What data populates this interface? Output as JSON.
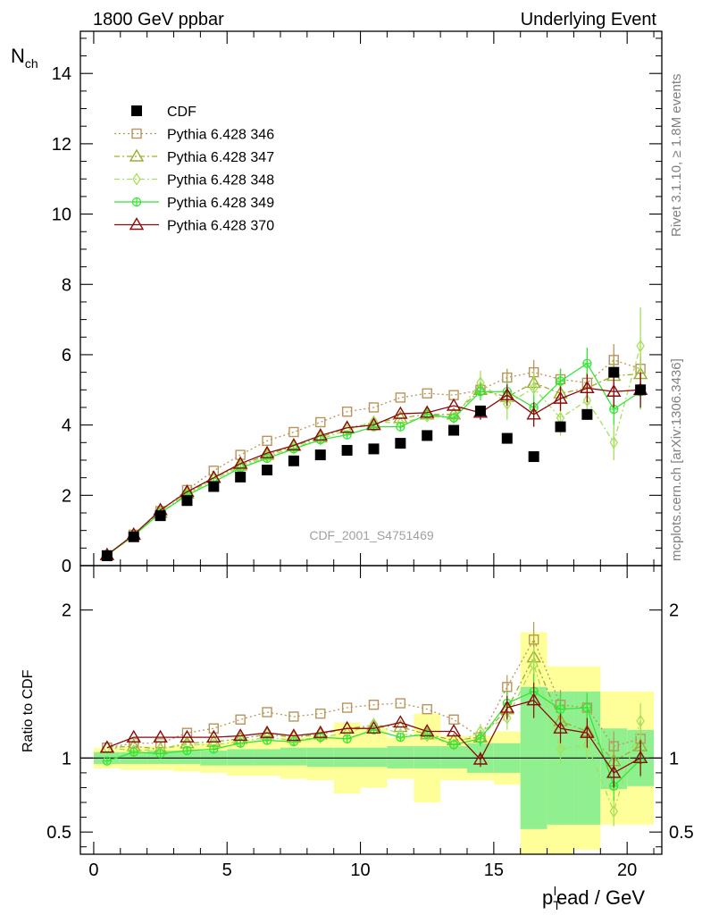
{
  "header": {
    "left_title": "1800 GeV ppbar",
    "right_title": "Underlying Event"
  },
  "side_labels": {
    "rivet": "Rivet 3.1.10, ≥ 1.8M events",
    "mcplots": "mcplots.cern.ch [arXiv:1306.3436]"
  },
  "watermark": "CDF_2001_S4751469",
  "axes": {
    "top_ylabel_main": "N",
    "top_ylabel_sub": "ch",
    "bottom_ylabel": "Ratio to CDF",
    "xlabel_p": "p",
    "xlabel_sub": "T",
    "xlabel_sup": "l",
    "xlabel_rest": "ead / GeV"
  },
  "chart_data": [
    {
      "type": "scatter",
      "panel": "main",
      "xlim": [
        -0.5,
        21.3
      ],
      "ylim": [
        0,
        15.2
      ],
      "xticks": [
        0,
        5,
        10,
        15,
        20
      ],
      "yticks": [
        0,
        2,
        4,
        6,
        8,
        10,
        12,
        14
      ],
      "x": [
        0.5,
        1.5,
        2.5,
        3.5,
        4.5,
        5.5,
        6.5,
        7.5,
        8.5,
        9.5,
        10.5,
        11.5,
        12.5,
        13.5,
        14.5,
        15.5,
        16.5,
        17.5,
        18.5,
        19.5,
        20.5
      ],
      "legend_position": "top-left",
      "series": [
        {
          "name": "CDF",
          "color": "#000000",
          "marker": "filled-square",
          "line": "none",
          "values": [
            0.28,
            0.82,
            1.42,
            1.85,
            2.25,
            2.52,
            2.72,
            2.98,
            3.15,
            3.28,
            3.32,
            3.48,
            3.7,
            3.85,
            4.4,
            3.62,
            3.1,
            3.95,
            4.3,
            5.5,
            5.0
          ]
        },
        {
          "name": "Pythia 6.428 346",
          "color": "#b8955a",
          "marker": "open-square",
          "line": "dotted",
          "values": [
            0.3,
            0.88,
            1.55,
            2.15,
            2.7,
            3.15,
            3.55,
            3.8,
            4.08,
            4.38,
            4.5,
            4.78,
            4.9,
            4.85,
            5.0,
            5.35,
            5.5,
            5.3,
            5.2,
            5.85,
            5.6
          ],
          "errors": [
            0,
            0,
            0,
            0,
            0,
            0,
            0,
            0,
            0,
            0,
            0,
            0,
            0,
            0,
            0.15,
            0.25,
            0.35,
            0.3,
            0.35,
            0.45,
            0.45
          ]
        },
        {
          "name": "Pythia 6.428 347",
          "color": "#9aae30",
          "marker": "open-triangle",
          "line": "dashdot",
          "values": [
            0.3,
            0.88,
            1.5,
            2.05,
            2.5,
            2.85,
            3.15,
            3.4,
            3.65,
            3.92,
            4.05,
            4.2,
            4.3,
            4.3,
            5.0,
            4.8,
            5.2,
            4.9,
            5.05,
            5.4,
            5.45
          ],
          "errors": [
            0,
            0,
            0,
            0,
            0,
            0,
            0,
            0,
            0,
            0,
            0,
            0,
            0,
            0,
            0.2,
            0.3,
            0.35,
            0.35,
            0.4,
            0.45,
            0.5
          ]
        },
        {
          "name": "Pythia 6.428 348",
          "color": "#a5e05a",
          "marker": "open-diamond",
          "line": "dashdot",
          "values": [
            0.3,
            0.86,
            1.5,
            2.02,
            2.45,
            2.8,
            3.1,
            3.35,
            3.6,
            3.85,
            4.1,
            4.05,
            4.25,
            4.2,
            5.2,
            4.6,
            5.05,
            4.2,
            4.7,
            3.5,
            6.25
          ],
          "errors": [
            0,
            0,
            0,
            0,
            0,
            0,
            0,
            0,
            0,
            0,
            0,
            0,
            0,
            0,
            0.35,
            0.45,
            0.5,
            0.5,
            0.55,
            0.5,
            1.1
          ]
        },
        {
          "name": "Pythia 6.428 349",
          "color": "#33e633",
          "marker": "open-circle-cross",
          "line": "solid",
          "values": [
            0.3,
            0.85,
            1.5,
            2.0,
            2.38,
            2.78,
            3.05,
            3.32,
            3.58,
            3.72,
            3.95,
            3.95,
            4.3,
            4.2,
            4.95,
            4.95,
            4.5,
            5.25,
            5.75,
            4.45,
            4.95
          ],
          "errors": [
            0,
            0,
            0,
            0,
            0,
            0,
            0,
            0,
            0,
            0,
            0,
            0,
            0,
            0,
            0.25,
            0.3,
            0.35,
            0.35,
            0.45,
            0.45,
            0.5
          ]
        },
        {
          "name": "Pythia 6.428 370",
          "color": "#8b0a0a",
          "marker": "open-triangle",
          "line": "solid",
          "values": [
            0.3,
            0.88,
            1.58,
            2.1,
            2.5,
            2.9,
            3.2,
            3.42,
            3.7,
            3.92,
            4.0,
            4.32,
            4.35,
            4.55,
            4.35,
            4.85,
            4.3,
            4.75,
            5.05,
            4.95,
            5.0
          ],
          "errors": [
            0,
            0,
            0,
            0,
            0,
            0,
            0,
            0,
            0,
            0,
            0,
            0,
            0,
            0,
            0.2,
            0.3,
            0.35,
            0.35,
            0.4,
            0.45,
            0.5
          ]
        }
      ]
    },
    {
      "type": "line",
      "panel": "ratio",
      "xlim": [
        -0.5,
        21.3
      ],
      "ylim": [
        0.35,
        2.3
      ],
      "xticks": [
        0,
        5,
        10,
        15,
        20
      ],
      "yticks": [
        0.5,
        1,
        2
      ],
      "x": [
        0.5,
        1.5,
        2.5,
        3.5,
        4.5,
        5.5,
        6.5,
        7.5,
        8.5,
        9.5,
        10.5,
        11.5,
        12.5,
        13.5,
        14.5,
        15.5,
        16.5,
        17.5,
        18.5,
        19.5,
        20.5
      ],
      "bands": {
        "inner_color": "#90f090",
        "outer_color": "#ffff99",
        "inner_lo": [
          0.96,
          0.96,
          0.96,
          0.96,
          0.95,
          0.95,
          0.95,
          0.95,
          0.94,
          0.94,
          0.94,
          0.93,
          0.93,
          0.93,
          0.9,
          0.9,
          0.52,
          0.55,
          0.55,
          0.79,
          0.81
        ],
        "inner_hi": [
          1.04,
          1.04,
          1.05,
          1.05,
          1.05,
          1.06,
          1.06,
          1.07,
          1.07,
          1.07,
          1.07,
          1.08,
          1.08,
          1.08,
          1.1,
          1.1,
          1.48,
          1.45,
          1.45,
          1.2,
          1.19
        ],
        "outer_lo": [
          0.93,
          0.92,
          0.92,
          0.91,
          0.9,
          0.88,
          0.88,
          0.86,
          0.85,
          0.76,
          0.8,
          0.86,
          0.7,
          0.85,
          0.85,
          0.82,
          0.32,
          0.35,
          0.38,
          0.55,
          0.55
        ],
        "outer_hi": [
          1.07,
          1.08,
          1.08,
          1.09,
          1.1,
          1.12,
          1.12,
          1.14,
          1.15,
          1.24,
          1.2,
          1.14,
          1.3,
          1.15,
          1.15,
          1.18,
          1.85,
          1.62,
          1.62,
          1.45,
          1.45
        ]
      },
      "series": [
        {
          "name": "Pythia 6.428 346",
          "values": [
            1.07,
            1.1,
            1.1,
            1.17,
            1.2,
            1.26,
            1.31,
            1.28,
            1.3,
            1.34,
            1.36,
            1.37,
            1.33,
            1.26,
            1.14,
            1.48,
            1.8,
            1.36,
            1.34,
            1.08,
            1.13
          ]
        },
        {
          "name": "Pythia 6.428 347",
          "values": [
            1.07,
            1.08,
            1.06,
            1.1,
            1.11,
            1.13,
            1.16,
            1.14,
            1.16,
            1.2,
            1.22,
            1.21,
            1.16,
            1.12,
            1.14,
            1.33,
            1.68,
            1.25,
            1.18,
            0.98,
            1.08
          ]
        },
        {
          "name": "Pythia 6.428 348",
          "values": [
            1.07,
            1.05,
            1.06,
            1.09,
            1.09,
            1.11,
            1.14,
            1.12,
            1.14,
            1.17,
            1.23,
            1.16,
            1.15,
            1.09,
            1.18,
            1.27,
            1.63,
            1.06,
            1.09,
            0.64,
            1.25
          ]
        },
        {
          "name": "Pythia 6.428 349",
          "values": [
            0.98,
            1.04,
            1.03,
            1.05,
            1.06,
            1.1,
            1.12,
            1.11,
            1.14,
            1.13,
            1.19,
            1.14,
            1.16,
            1.09,
            1.13,
            1.37,
            1.45,
            1.33,
            1.34,
            0.81,
            0.99
          ]
        },
        {
          "name": "Pythia 6.428 370",
          "values": [
            1.07,
            1.14,
            1.14,
            1.14,
            1.14,
            1.15,
            1.17,
            1.15,
            1.17,
            1.2,
            1.2,
            1.24,
            1.18,
            1.18,
            0.99,
            1.34,
            1.39,
            1.2,
            1.17,
            0.9,
            1.0
          ]
        }
      ],
      "ratio_errors": [
        0,
        0,
        0,
        0,
        0,
        0,
        0,
        0,
        0,
        0,
        0,
        0,
        0,
        0,
        0.05,
        0.08,
        0.12,
        0.1,
        0.1,
        0.1,
        0.12
      ]
    }
  ]
}
